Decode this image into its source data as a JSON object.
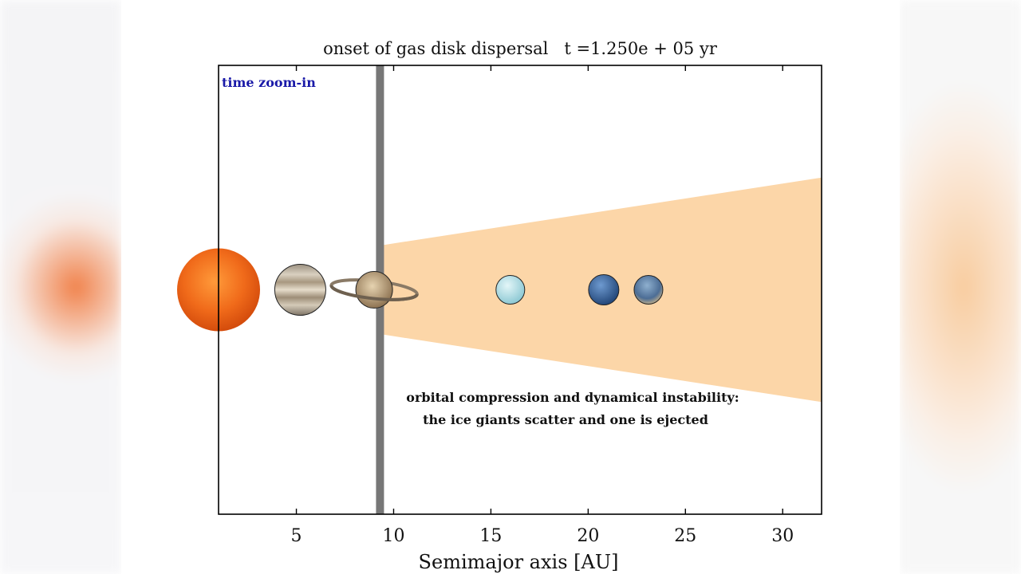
{
  "chart_data": {
    "type": "scatter",
    "title": "onset of gas disk dispersal   t =1.250e + 05 yr",
    "xlabel": "Semimajor axis [AU]",
    "ylabel": "",
    "xlim": [
      1,
      32
    ],
    "ylim": [
      -1,
      1
    ],
    "xticks": [
      5,
      10,
      15,
      20,
      25,
      30
    ],
    "tick_labels": [
      "5",
      "10",
      "15",
      "20",
      "25",
      "30"
    ],
    "grid": false,
    "zoom_label": "time zoom-in",
    "annotation": [
      "orbital compression and dynamical instability:",
      "the ice giants scatter and one is ejected"
    ],
    "marker_line": {
      "x": 9.3
    },
    "disk": {
      "inner_x": 9.5,
      "inner_half_height": 0.2,
      "outer_x": 32,
      "outer_half_height": 0.5,
      "color": "#fcd6a8"
    },
    "bodies": [
      {
        "name": "sun",
        "x": 1.0,
        "y": 0.0
      },
      {
        "name": "jupiter",
        "x": 5.2,
        "y": 0.0
      },
      {
        "name": "saturn",
        "x": 9.0,
        "y": 0.0
      },
      {
        "name": "uranus",
        "x": 16.0,
        "y": 0.0
      },
      {
        "name": "neptune",
        "x": 20.8,
        "y": 0.0
      },
      {
        "name": "ice-giant",
        "x": 23.1,
        "y": 0.0
      }
    ]
  },
  "colors": {
    "sun": "#f06a1a",
    "jupiter": "#b8a890",
    "saturn": "#b59a78",
    "uranus": "#b6e2ea",
    "neptune": "#3f6fa8",
    "ice_giant": "#5b7fa8",
    "zoom_label": "#1a1aa8",
    "marker_line": "#777777"
  },
  "icons": [
    "sun-icon",
    "jupiter-icon",
    "saturn-icon",
    "uranus-icon",
    "neptune-icon",
    "ice-giant-icon"
  ]
}
